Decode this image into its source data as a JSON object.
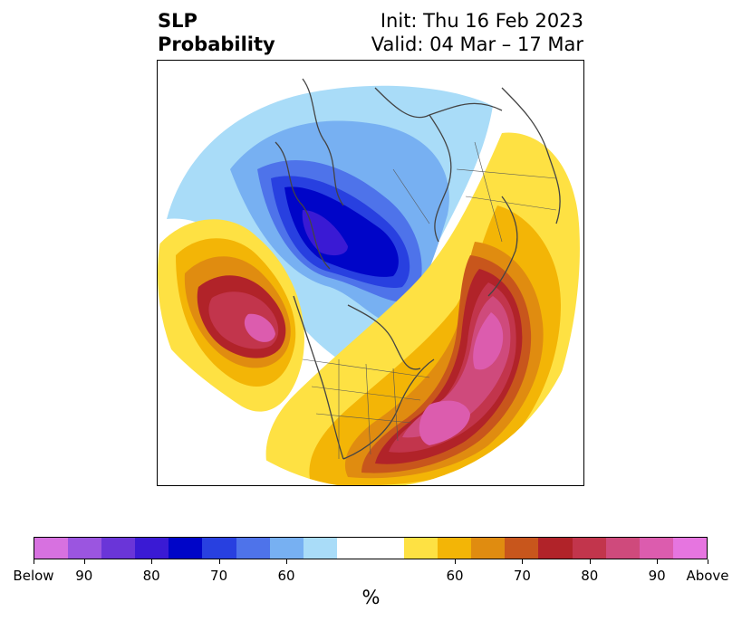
{
  "title": {
    "left_line1": "SLP",
    "left_line2": "Probability",
    "right_line1": "Init: Thu 16 Feb 2023",
    "right_line2": "Valid: 04 Mar – 17 Mar"
  },
  "colorbar": {
    "below_colors": [
      "#d771e0",
      "#9b55e0",
      "#6a35d8",
      "#3a1ad4",
      "#0005c8",
      "#2840e0",
      "#4e73ea",
      "#77b0f2",
      "#a9dcf8"
    ],
    "neutral_color": "#ffffff",
    "above_colors": [
      "#fee143",
      "#f3b506",
      "#e08c10",
      "#c8561c",
      "#b12329",
      "#c2354c",
      "#cf4a7c",
      "#dc5cae",
      "#e675e0"
    ],
    "tick_labels": [
      "Below",
      "90",
      "80",
      "70",
      "60",
      "60",
      "70",
      "80",
      "90",
      "Above"
    ],
    "unit_label": "%"
  }
}
